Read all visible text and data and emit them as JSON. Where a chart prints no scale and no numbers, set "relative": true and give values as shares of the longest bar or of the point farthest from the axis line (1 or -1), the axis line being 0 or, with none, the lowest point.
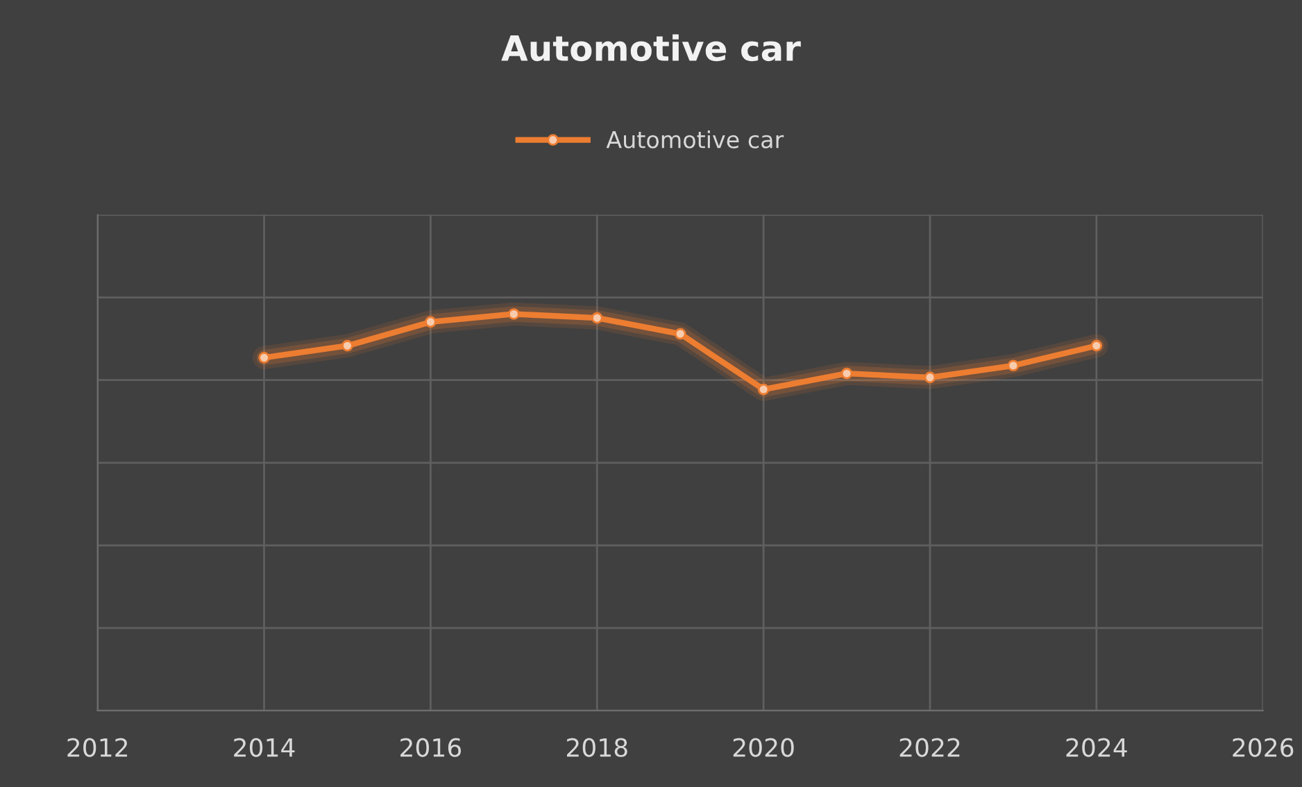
{
  "chart_data": {
    "type": "line",
    "title": "Automotive car",
    "relative": true,
    "x": [
      2014,
      2015,
      2016,
      2017,
      2018,
      2019,
      2020,
      2021,
      2022,
      2023,
      2024
    ],
    "series": [
      {
        "name": "Automotive car",
        "color": "#ed7d31",
        "values": [
          0.89,
          0.92,
          0.98,
          1,
          0.99,
          0.95,
          0.81,
          0.85,
          0.84,
          0.87,
          0.92
        ]
      }
    ],
    "xlim": [
      2012,
      2026
    ],
    "xticks": [
      2012,
      2014,
      2016,
      2018,
      2020,
      2022,
      2024,
      2026
    ],
    "grid": true,
    "legend": "top",
    "marker": "circle",
    "line_style": "solid"
  }
}
